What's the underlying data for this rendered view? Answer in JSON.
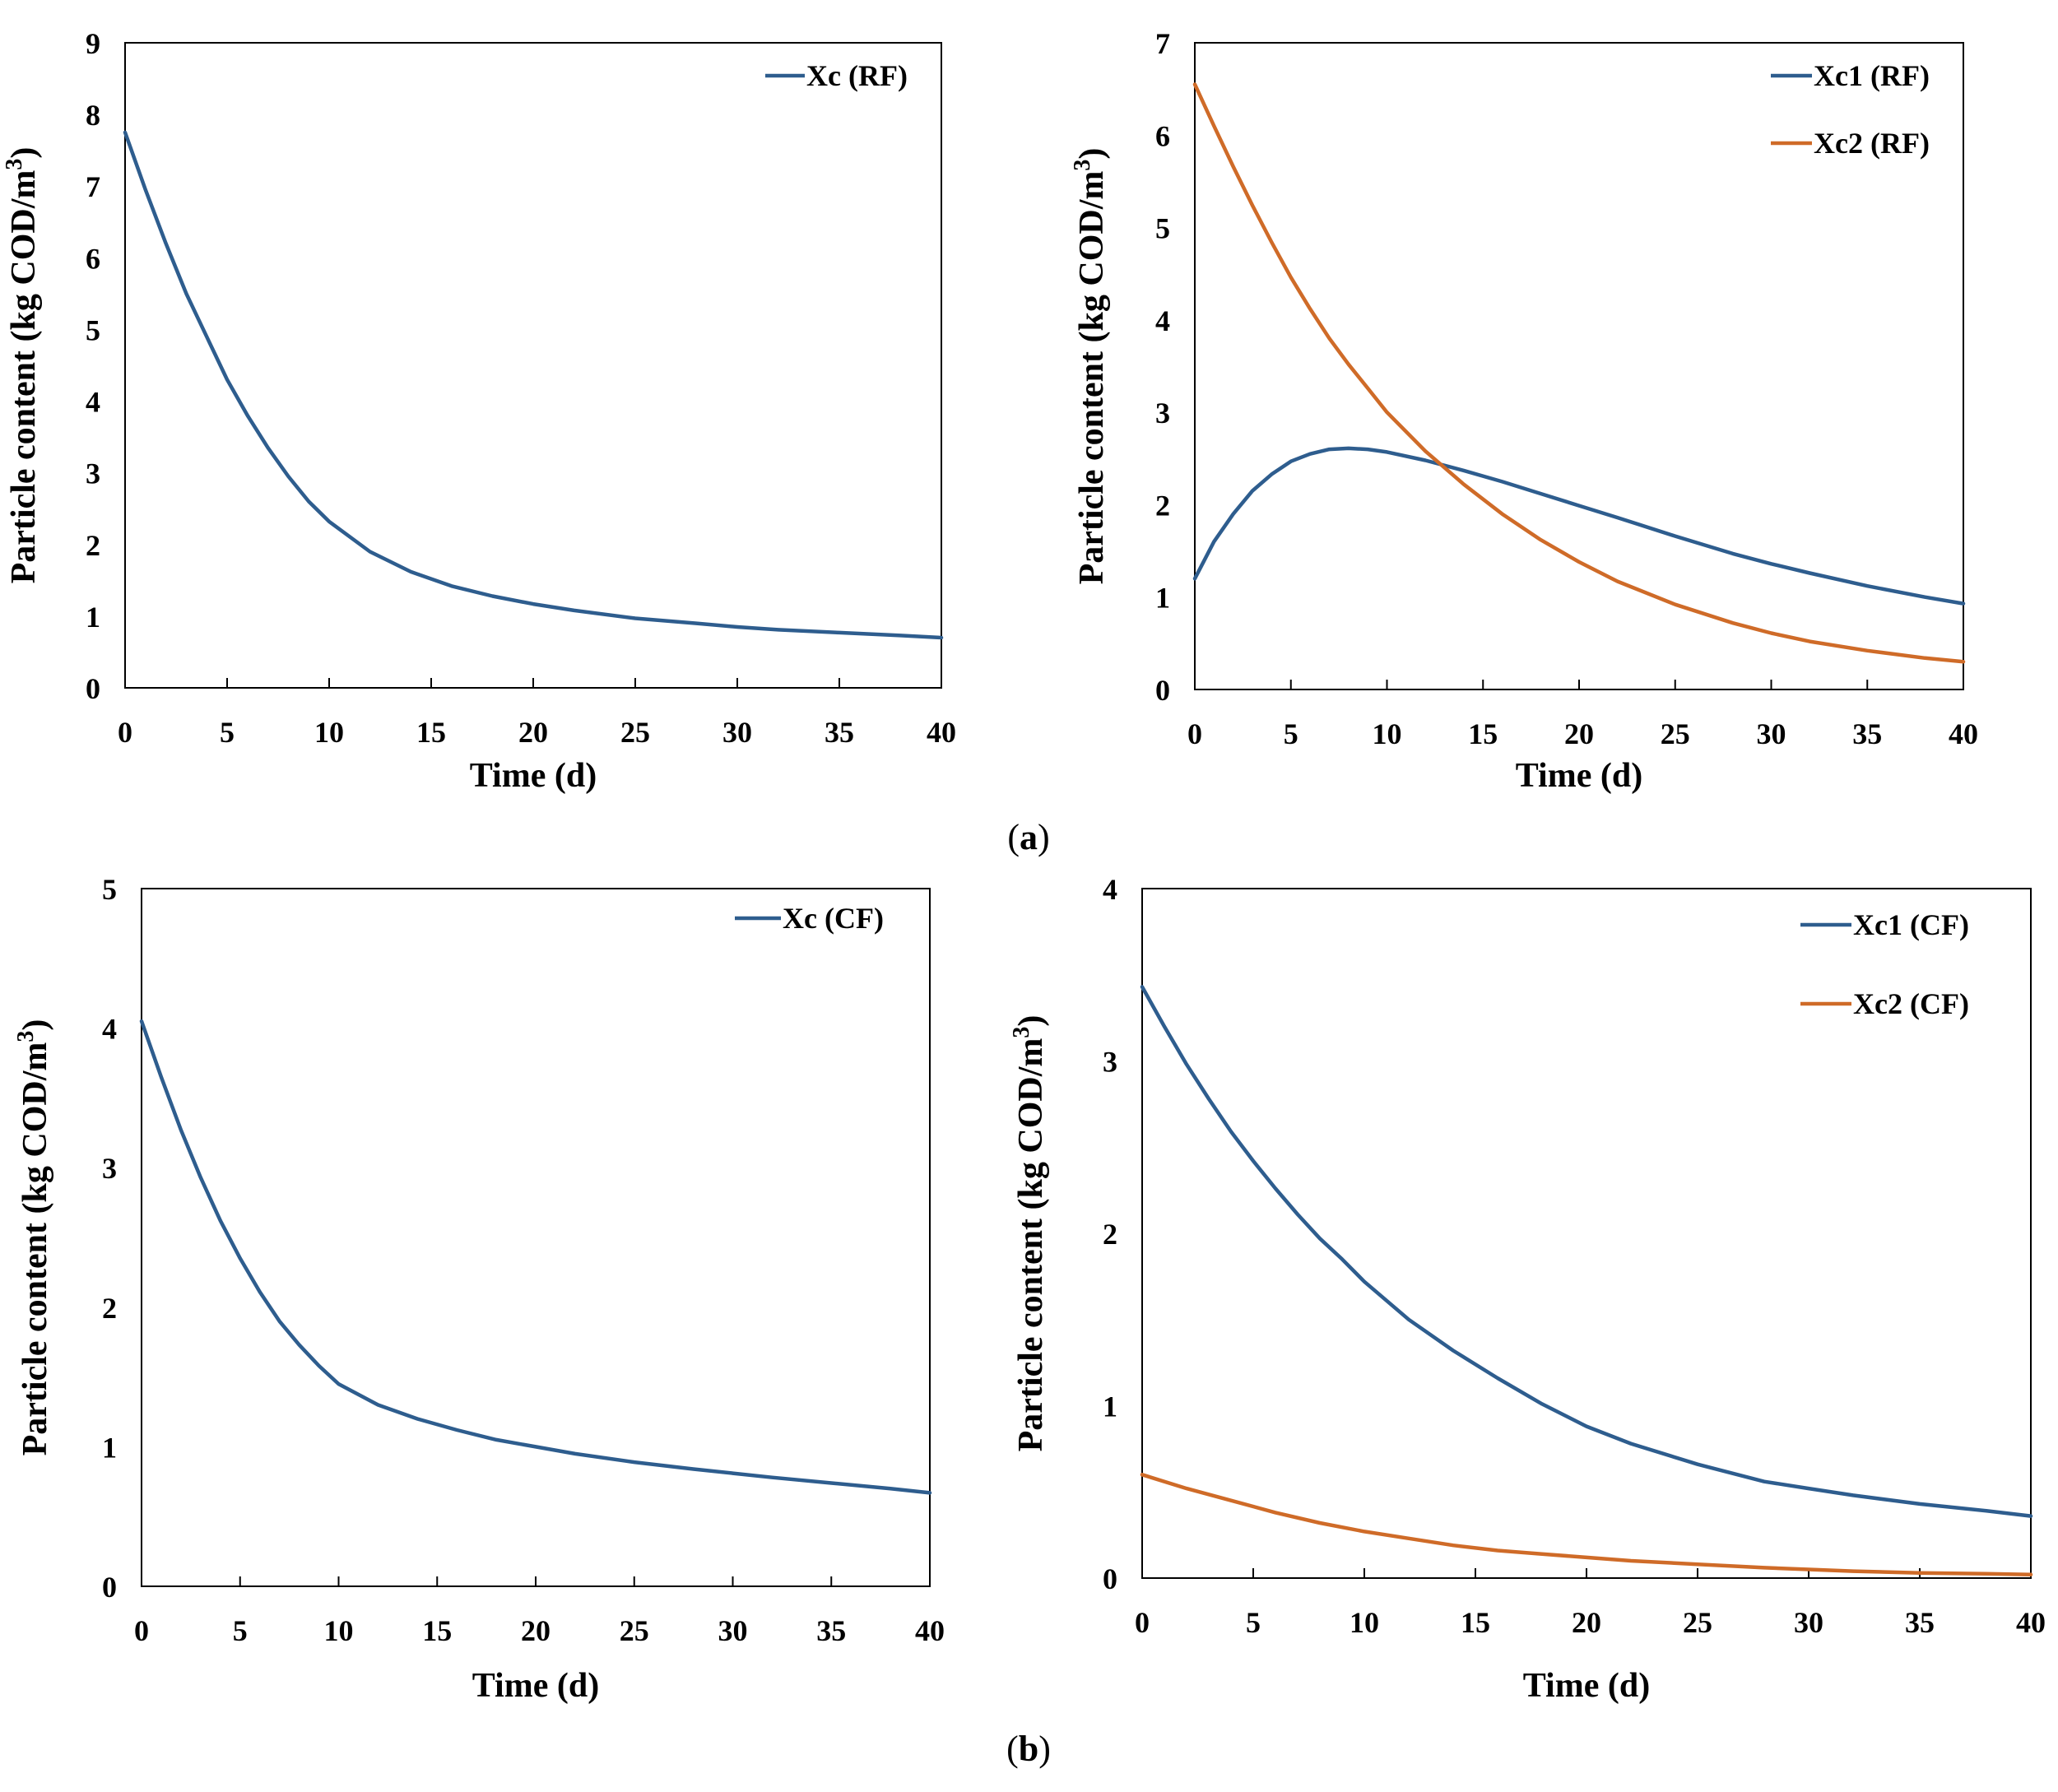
{
  "colors": {
    "blue": "#2e5d8e",
    "orange": "#cf6b28"
  },
  "panel_labels": {
    "a": "a",
    "b": "b"
  },
  "chart_data": [
    {
      "type": "line",
      "ylabel_main": "Particle content (kg COD/m",
      "ylabel_sup": "3",
      "ylabel_end": ")",
      "xlabel": "Time (d)",
      "xlim": [
        0,
        40
      ],
      "ylim": [
        0,
        9
      ],
      "xticks": [
        0,
        5,
        10,
        15,
        20,
        25,
        30,
        35,
        40
      ],
      "yticks": [
        0,
        1,
        2,
        3,
        4,
        5,
        6,
        7,
        8,
        9
      ],
      "legend_position": "top-right",
      "series": [
        {
          "name": "Xc (RF)",
          "color": "#2e5d8e",
          "x": [
            0,
            1,
            2,
            3,
            4,
            5,
            6,
            7,
            8,
            9,
            10,
            12,
            14,
            16,
            18,
            20,
            22,
            25,
            28,
            30,
            32,
            35,
            38,
            40
          ],
          "y": [
            7.75,
            6.95,
            6.2,
            5.5,
            4.9,
            4.3,
            3.8,
            3.35,
            2.95,
            2.6,
            2.32,
            1.9,
            1.62,
            1.42,
            1.28,
            1.17,
            1.08,
            0.97,
            0.9,
            0.85,
            0.81,
            0.77,
            0.73,
            0.7
          ]
        }
      ]
    },
    {
      "type": "line",
      "ylabel_main": "Particle content (kg COD/m",
      "ylabel_sup": "3",
      "ylabel_end": ")",
      "xlabel": "Time (d)",
      "xlim": [
        0,
        40
      ],
      "ylim": [
        0,
        7
      ],
      "xticks": [
        0,
        5,
        10,
        15,
        20,
        25,
        30,
        35,
        40
      ],
      "yticks": [
        0,
        1,
        2,
        3,
        4,
        5,
        6,
        7
      ],
      "legend_position": "top-right",
      "series": [
        {
          "name": "Xc1 (RF)",
          "color": "#2e5d8e",
          "x": [
            0,
            1,
            2,
            3,
            4,
            5,
            6,
            7,
            8,
            9,
            10,
            12,
            14,
            16,
            18,
            20,
            22,
            25,
            28,
            30,
            32,
            35,
            38,
            40
          ],
          "y": [
            1.2,
            1.6,
            1.9,
            2.15,
            2.33,
            2.47,
            2.55,
            2.6,
            2.61,
            2.6,
            2.57,
            2.48,
            2.37,
            2.25,
            2.12,
            1.99,
            1.86,
            1.66,
            1.47,
            1.36,
            1.26,
            1.12,
            1.0,
            0.93
          ]
        },
        {
          "name": "Xc2 (RF)",
          "color": "#cf6b28",
          "x": [
            0,
            1,
            2,
            3,
            4,
            5,
            6,
            7,
            8,
            9,
            10,
            12,
            14,
            16,
            18,
            20,
            22,
            25,
            28,
            30,
            32,
            35,
            38,
            40
          ],
          "y": [
            6.55,
            6.1,
            5.66,
            5.24,
            4.84,
            4.46,
            4.12,
            3.8,
            3.52,
            3.26,
            3.0,
            2.58,
            2.22,
            1.9,
            1.62,
            1.38,
            1.17,
            0.92,
            0.72,
            0.61,
            0.52,
            0.42,
            0.34,
            0.3
          ]
        }
      ]
    },
    {
      "type": "line",
      "ylabel_main": "Particle content (kg COD/m",
      "ylabel_sup": "3",
      "ylabel_end": ")",
      "xlabel": "Time (d)",
      "xlim": [
        0,
        40
      ],
      "ylim": [
        0,
        5
      ],
      "xticks": [
        0,
        5,
        10,
        15,
        20,
        25,
        30,
        35,
        40
      ],
      "yticks": [
        0,
        1,
        2,
        3,
        4,
        5
      ],
      "legend_position": "top-right",
      "series": [
        {
          "name": "Xc (CF)",
          "color": "#2e5d8e",
          "x": [
            0,
            1,
            2,
            3,
            4,
            5,
            6,
            7,
            8,
            9,
            10,
            12,
            14,
            16,
            18,
            20,
            22,
            25,
            28,
            30,
            32,
            35,
            38,
            40
          ],
          "y": [
            4.05,
            3.65,
            3.27,
            2.93,
            2.62,
            2.35,
            2.11,
            1.9,
            1.73,
            1.58,
            1.45,
            1.3,
            1.2,
            1.12,
            1.05,
            1.0,
            0.95,
            0.89,
            0.84,
            0.81,
            0.78,
            0.74,
            0.7,
            0.67
          ]
        }
      ]
    },
    {
      "type": "line",
      "ylabel_main": "Particle content (kg COD/m",
      "ylabel_sup": "3",
      "ylabel_end": ")",
      "xlabel": "Time (d)",
      "xlim": [
        0,
        40
      ],
      "ylim": [
        0,
        4
      ],
      "xticks": [
        0,
        5,
        10,
        15,
        20,
        25,
        30,
        35,
        40
      ],
      "yticks": [
        0,
        1,
        2,
        3,
        4
      ],
      "legend_position": "top-right",
      "series": [
        {
          "name": "Xc1 (CF)",
          "color": "#2e5d8e",
          "x": [
            0,
            1,
            2,
            3,
            4,
            5,
            6,
            7,
            8,
            9,
            10,
            12,
            14,
            16,
            18,
            20,
            22,
            25,
            28,
            30,
            32,
            35,
            38,
            40
          ],
          "y": [
            3.43,
            3.2,
            2.98,
            2.78,
            2.59,
            2.42,
            2.26,
            2.11,
            1.97,
            1.85,
            1.72,
            1.5,
            1.32,
            1.16,
            1.01,
            0.88,
            0.78,
            0.66,
            0.56,
            0.52,
            0.48,
            0.43,
            0.39,
            0.36
          ]
        },
        {
          "name": "Xc2 (CF)",
          "color": "#cf6b28",
          "x": [
            0,
            2,
            4,
            6,
            8,
            10,
            12,
            14,
            16,
            18,
            20,
            22,
            25,
            28,
            30,
            32,
            35,
            38,
            40
          ],
          "y": [
            0.6,
            0.52,
            0.45,
            0.38,
            0.32,
            0.27,
            0.23,
            0.19,
            0.16,
            0.14,
            0.12,
            0.1,
            0.08,
            0.06,
            0.05,
            0.04,
            0.03,
            0.025,
            0.02
          ]
        }
      ]
    }
  ]
}
